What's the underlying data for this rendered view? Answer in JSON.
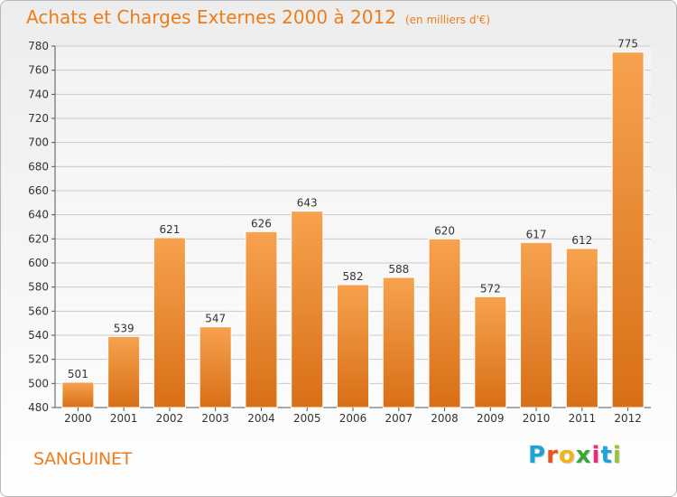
{
  "chart_data": {
    "type": "bar",
    "title": "Achats et Charges Externes 2000 à 2012",
    "subtitle": "(en milliers d'€)",
    "categories": [
      "2000",
      "2001",
      "2002",
      "2003",
      "2004",
      "2005",
      "2006",
      "2007",
      "2008",
      "2009",
      "2010",
      "2011",
      "2012"
    ],
    "values": [
      501,
      539,
      621,
      547,
      626,
      643,
      582,
      588,
      620,
      572,
      617,
      612,
      775
    ],
    "ylim": [
      480,
      780
    ],
    "yticks": [
      480,
      500,
      520,
      540,
      560,
      580,
      600,
      620,
      640,
      660,
      680,
      700,
      720,
      740,
      760,
      780
    ],
    "grid": true,
    "bar_color_top": "#f7a24f",
    "bar_color_bottom": "#d86f16"
  },
  "footer": {
    "town": "SANGUINET",
    "logo_letters": [
      "P",
      "r",
      "o",
      "x",
      "i",
      "t",
      "i"
    ],
    "logo_colors": [
      "#1ea3d9",
      "#e9531c",
      "#f2b21a",
      "#3aa635",
      "#e62d7b",
      "#1ea3d9",
      "#9bc23c"
    ]
  }
}
